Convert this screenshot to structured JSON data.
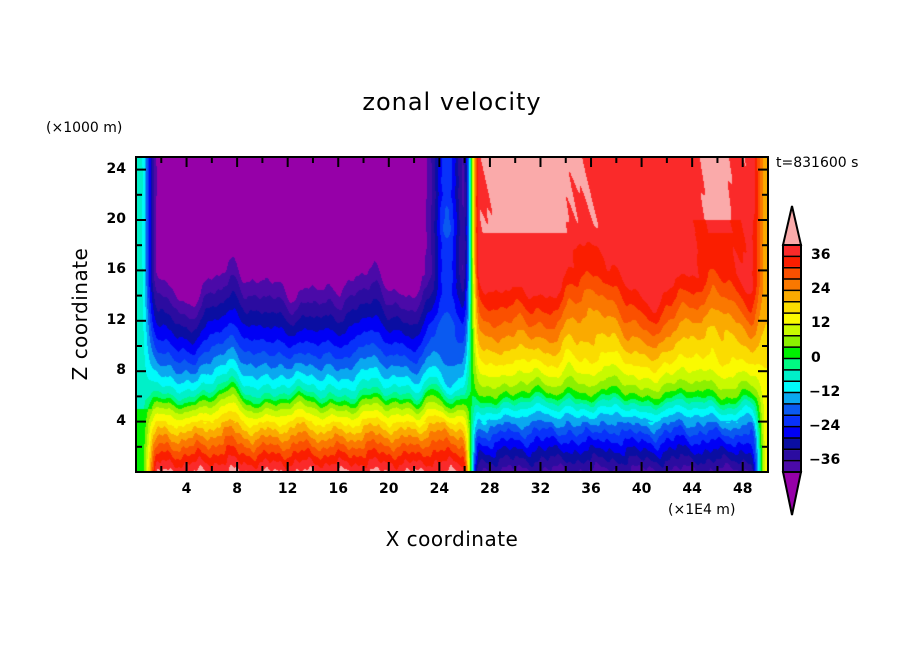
{
  "chart_data": {
    "type": "heatmap",
    "subtype": "filled-contour",
    "title": "zonal velocity",
    "xlabel": "X coordinate",
    "ylabel": "Z coordinate",
    "x_units": "(×1E4 m)",
    "y_units": "(×1000 m)",
    "annotation": "t=831600 s",
    "xlim": [
      0,
      50
    ],
    "ylim": [
      0,
      25
    ],
    "x_ticks": [
      4,
      8,
      12,
      16,
      20,
      24,
      28,
      32,
      36,
      40,
      44,
      48
    ],
    "x_tick_labels": [
      "4",
      "8",
      "12",
      "16",
      "20",
      "24",
      "28",
      "32",
      "36",
      "40",
      "44",
      "48"
    ],
    "y_ticks": [
      4,
      8,
      12,
      16,
      20,
      24
    ],
    "y_tick_labels": [
      "4",
      "8",
      "12",
      "16",
      "20",
      "24"
    ],
    "x_minor_step": 2,
    "y_minor_step": 2,
    "colorbar": {
      "levels": [
        -40,
        -36,
        -32,
        -28,
        -24,
        -20,
        -16,
        -12,
        -8,
        -4,
        0,
        4,
        8,
        12,
        16,
        20,
        24,
        28,
        32,
        36,
        40
      ],
      "label_values": [
        36,
        24,
        12,
        0,
        -12,
        -24,
        -36
      ],
      "label_texts": [
        "36",
        "24",
        "12",
        "0",
        "−12",
        "−24",
        "−36"
      ],
      "colors": [
        "#4b0aa8",
        "#2b0ca0",
        "#0a0ea2",
        "#0000f5",
        "#0832fa",
        "#0a5af0",
        "#0aa8f0",
        "#00fafa",
        "#00f0c8",
        "#00fa82",
        "#00f000",
        "#8cf000",
        "#c8fa00",
        "#fafa00",
        "#fadc00",
        "#faaa00",
        "#fa7800",
        "#fa5000",
        "#fa1e00",
        "#fa2a2a"
      ],
      "under_color": "#9600a8",
      "over_color": "#faaaaa",
      "extend": "both"
    },
    "field_description": {
      "west_region": {
        "x_range": [
          1,
          23
        ],
        "aloft": -40,
        "surface": 36
      },
      "jet_column": {
        "x_range": [
          23,
          26.5
        ],
        "value": -18
      },
      "east_region": {
        "x_range": [
          26.5,
          49
        ],
        "aloft": 38,
        "surface": -36
      },
      "zero_line_height": 6
    }
  }
}
